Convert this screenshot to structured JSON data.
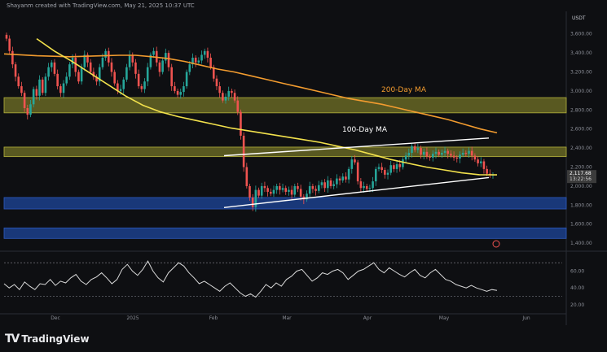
{
  "header": {
    "attribution": "Shayanm created with TradingView.com, May 21, 2025 10:37 UTC",
    "quote_currency": "USDT"
  },
  "footer": {
    "brand_mark": "TV",
    "brand_name": "TradingView"
  },
  "colors": {
    "up": "#26a69a",
    "down": "#ef5350",
    "ma100": "#f2e14c",
    "ma200": "#f39c2f",
    "supply_zone": "#8c8a2c",
    "support_zone": "#1b3f8c",
    "channel": "#ffffff",
    "rsi": "#d9d9d9",
    "price_tag": "#3b3b3b"
  },
  "chart_data": [
    {
      "type": "candlestick",
      "title": "",
      "y_ticks": [
        "3,600.00",
        "3,400.00",
        "3,200.00",
        "3,000.00",
        "2,800.00",
        "2,600.00",
        "2,400.00",
        "2,200.00",
        "2,000.00",
        "1,800.00",
        "1,600.00",
        "1,400.00"
      ],
      "x_ticks": [
        "Dec",
        "2025",
        "Feb",
        "Mar",
        "Apr",
        "May",
        "Jun"
      ],
      "ylim": [
        1350,
        3700
      ],
      "last_price_labels": [
        "2,117.68",
        "13:22:56"
      ],
      "annotations": [
        "200-Day MA",
        "100-Day MA"
      ],
      "zones": [
        {
          "name": "resistance",
          "from": 2770,
          "to": 2930
        },
        {
          "name": "resistance",
          "from": 2310,
          "to": 2410
        },
        {
          "name": "support",
          "from": 1760,
          "to": 1880
        },
        {
          "name": "support",
          "from": 1450,
          "to": 1560
        }
      ],
      "close_series": [
        3550,
        3420,
        3280,
        3150,
        3050,
        2980,
        2820,
        2750,
        2860,
        3020,
        2950,
        3120,
        2980,
        3150,
        3250,
        3300,
        3180,
        3050,
        2980,
        3080,
        3150,
        3280,
        3350,
        3200,
        3100,
        3250,
        3380,
        3300,
        3200,
        3150,
        3100,
        3250,
        3350,
        3420,
        3300,
        3200,
        3080,
        3000,
        3020,
        3120,
        3250,
        3380,
        3300,
        3180,
        3050,
        3020,
        3100,
        3250,
        3380,
        3420,
        3300,
        3200,
        3320,
        3400,
        3250,
        3050,
        3000,
        2960,
        2990,
        3050,
        3200,
        3280,
        3350,
        3300,
        3320,
        3380,
        3420,
        3350,
        3250,
        3130,
        3050,
        2980,
        2900,
        2940,
        3000,
        2980,
        2900,
        2780,
        2530,
        2200,
        2000,
        1880,
        1780,
        1960,
        1900,
        2000,
        1980,
        1940,
        1920,
        1960,
        2000,
        1960,
        1980,
        1940,
        1960,
        1910,
        2000,
        1970,
        1890,
        1860,
        1920,
        2000,
        1970,
        1950,
        2010,
        2040,
        1980,
        2060,
        2000,
        2020,
        2080,
        2060,
        2100,
        2070,
        2180,
        2280,
        2250,
        2050,
        1980,
        2000,
        1970,
        1980,
        2050,
        2180,
        2200,
        2170,
        2120,
        2140,
        2220,
        2180,
        2230,
        2200,
        2280,
        2320,
        2350,
        2420,
        2380,
        2400,
        2330,
        2360,
        2310,
        2300,
        2340,
        2360,
        2330,
        2350,
        2370,
        2340,
        2320,
        2300,
        2290,
        2330,
        2350,
        2340,
        2370,
        2320,
        2280,
        2240,
        2260,
        2180,
        2130,
        2118,
        2120
      ],
      "ma100": [
        3550,
        3420,
        3310,
        3190,
        3070,
        2950,
        2850,
        2780,
        2730,
        2690,
        2650,
        2610,
        2580,
        2550,
        2520,
        2490,
        2460,
        2420,
        2380,
        2330,
        2280,
        2240,
        2200,
        2170,
        2140,
        2120,
        2118
      ],
      "ma200": [
        3390,
        3380,
        3370,
        3365,
        3360,
        3365,
        3370,
        3375,
        3375,
        3360,
        3340,
        3310,
        3270,
        3230,
        3200,
        3160,
        3120,
        3080,
        3040,
        3000,
        2960,
        2920,
        2890,
        2860,
        2820,
        2780,
        2740,
        2700,
        2650,
        2600,
        2560
      ],
      "channel_upper": [
        [
          0,
          2320
        ],
        [
          1,
          2505
        ]
      ],
      "channel_lower": [
        [
          0,
          1775
        ],
        [
          1,
          2090
        ]
      ]
    },
    {
      "type": "line",
      "title": "",
      "name": "",
      "y_ticks": [
        "60.00",
        "40.00",
        "20.00"
      ],
      "ylim": [
        15,
        75
      ],
      "rsi_levels": [
        70,
        30
      ],
      "values": [
        45,
        40,
        44,
        38,
        47,
        42,
        38,
        45,
        44,
        50,
        43,
        48,
        46,
        52,
        56,
        48,
        44,
        50,
        53,
        58,
        52,
        45,
        50,
        62,
        68,
        60,
        55,
        62,
        72,
        60,
        52,
        47,
        58,
        64,
        70,
        66,
        58,
        52,
        45,
        48,
        44,
        40,
        36,
        42,
        46,
        40,
        34,
        30,
        33,
        29,
        36,
        44,
        40,
        46,
        42,
        50,
        54,
        60,
        62,
        55,
        48,
        52,
        58,
        56,
        60,
        62,
        58,
        50,
        55,
        60,
        62,
        66,
        70,
        62,
        58,
        64,
        60,
        56,
        53,
        58,
        62,
        55,
        52,
        58,
        62,
        56,
        50,
        48,
        44,
        42,
        40,
        43,
        40,
        38,
        36,
        38,
        37
      ]
    }
  ]
}
